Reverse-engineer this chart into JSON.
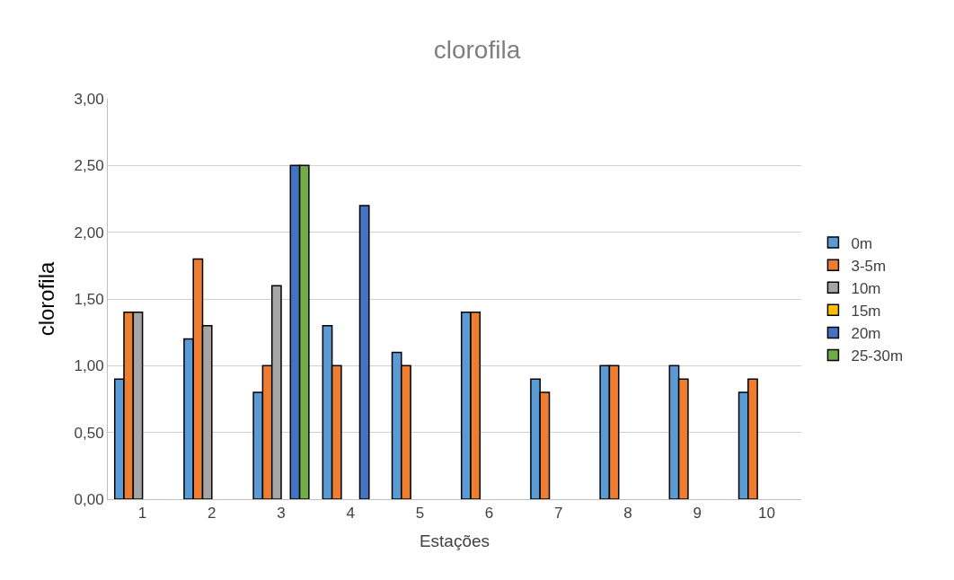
{
  "chart_data": {
    "type": "bar",
    "title": "clorofila",
    "xlabel": "Estações",
    "ylabel": "clorofila",
    "categories": [
      "1",
      "2",
      "3",
      "4",
      "5",
      "6",
      "7",
      "8",
      "9",
      "10"
    ],
    "series": [
      {
        "name": "0m",
        "color": "#5b9bd5",
        "values": [
          0.9,
          1.2,
          0.8,
          1.3,
          1.1,
          1.4,
          0.9,
          1.0,
          1.0,
          0.8
        ]
      },
      {
        "name": "3-5m",
        "color": "#ed7d31",
        "values": [
          1.4,
          1.8,
          1.0,
          1.0,
          1.0,
          1.4,
          0.8,
          1.0,
          0.9,
          0.9
        ]
      },
      {
        "name": "10m",
        "color": "#a5a5a5",
        "values": [
          1.4,
          1.3,
          1.6,
          null,
          null,
          null,
          null,
          null,
          null,
          null
        ]
      },
      {
        "name": "15m",
        "color": "#ffc000",
        "values": [
          null,
          null,
          null,
          null,
          null,
          null,
          null,
          null,
          null,
          null
        ]
      },
      {
        "name": "20m",
        "color": "#4472c4",
        "values": [
          null,
          null,
          2.5,
          2.2,
          null,
          null,
          null,
          null,
          null,
          null
        ]
      },
      {
        "name": "25-30m",
        "color": "#70ad47",
        "values": [
          null,
          null,
          2.5,
          null,
          null,
          null,
          null,
          null,
          null,
          null
        ]
      }
    ],
    "ylim": [
      0,
      3
    ],
    "yticks": [
      {
        "value": 0,
        "label": "0,00"
      },
      {
        "value": 0.5,
        "label": "0,50"
      },
      {
        "value": 1,
        "label": "1,00"
      },
      {
        "value": 1.5,
        "label": "1,50"
      },
      {
        "value": 2,
        "label": "2,00"
      },
      {
        "value": 2.5,
        "label": "2,50"
      },
      {
        "value": 3,
        "label": "3,00"
      }
    ],
    "grid": "y",
    "legend": "right"
  }
}
